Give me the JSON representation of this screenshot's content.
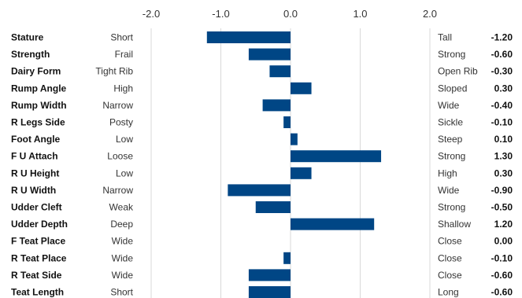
{
  "chart_data": {
    "type": "bar",
    "orientation": "horizontal",
    "xlim": [
      -2.0,
      2.0
    ],
    "ticks": [
      "-2.0",
      "-1.0",
      "0.0",
      "1.0",
      "2.0"
    ],
    "tick_values": [
      -2,
      -1,
      0,
      1,
      2
    ],
    "grid": true,
    "bar_color": "#004685",
    "rows": [
      {
        "trait": "Stature",
        "low": "Short",
        "high": "Tall",
        "value": -1.2,
        "label": "-1.20"
      },
      {
        "trait": "Strength",
        "low": "Frail",
        "high": "Strong",
        "value": -0.6,
        "label": "-0.60"
      },
      {
        "trait": "Dairy Form",
        "low": "Tight Rib",
        "high": "Open Rib",
        "value": -0.3,
        "label": "-0.30"
      },
      {
        "trait": "Rump Angle",
        "low": "High",
        "high": "Sloped",
        "value": 0.3,
        "label": "0.30"
      },
      {
        "trait": "Rump Width",
        "low": "Narrow",
        "high": "Wide",
        "value": -0.4,
        "label": "-0.40"
      },
      {
        "trait": "R Legs Side",
        "low": "Posty",
        "high": "Sickle",
        "value": -0.1,
        "label": "-0.10"
      },
      {
        "trait": "Foot Angle",
        "low": "Low",
        "high": "Steep",
        "value": 0.1,
        "label": "0.10"
      },
      {
        "trait": "F U Attach",
        "low": "Loose",
        "high": "Strong",
        "value": 1.3,
        "label": "1.30"
      },
      {
        "trait": "R U Height",
        "low": "Low",
        "high": "High",
        "value": 0.3,
        "label": "0.30"
      },
      {
        "trait": "R U Width",
        "low": "Narrow",
        "high": "Wide",
        "value": -0.9,
        "label": "-0.90"
      },
      {
        "trait": "Udder Cleft",
        "low": "Weak",
        "high": "Strong",
        "value": -0.5,
        "label": "-0.50"
      },
      {
        "trait": "Udder Depth",
        "low": "Deep",
        "high": "Shallow",
        "value": 1.2,
        "label": "1.20"
      },
      {
        "trait": "F Teat Place",
        "low": "Wide",
        "high": "Close",
        "value": 0.0,
        "label": "0.00"
      },
      {
        "trait": "R Teat Place",
        "low": "Wide",
        "high": "Close",
        "value": -0.1,
        "label": "-0.10"
      },
      {
        "trait": "R Teat Side",
        "low": "Wide",
        "high": "Close",
        "value": -0.6,
        "label": "-0.60"
      },
      {
        "trait": "Teat Length",
        "low": "Short",
        "high": "Long",
        "value": -0.6,
        "label": "-0.60"
      }
    ]
  }
}
